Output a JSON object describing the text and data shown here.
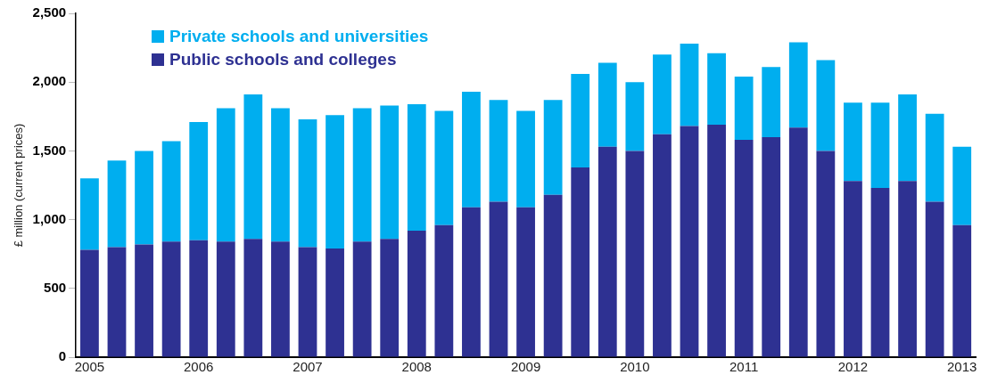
{
  "chart_data": {
    "type": "bar",
    "stacked": true,
    "ylabel": "£ million (current prices)",
    "categories": [
      "2005",
      null,
      null,
      null,
      "2006",
      null,
      null,
      null,
      "2007",
      null,
      null,
      null,
      "2008",
      null,
      null,
      null,
      "2009",
      null,
      null,
      null,
      "2010",
      null,
      null,
      null,
      "2011",
      null,
      null,
      null,
      "2012",
      null,
      null,
      null,
      "2013"
    ],
    "series": [
      {
        "name": "Public schools and colleges",
        "color": "#2e3192",
        "values": [
          780,
          800,
          820,
          840,
          850,
          840,
          860,
          840,
          800,
          790,
          840,
          860,
          920,
          960,
          1090,
          1130,
          1090,
          1180,
          1380,
          1530,
          1500,
          1620,
          1680,
          1690,
          1580,
          1600,
          1670,
          1500,
          1280,
          1230,
          1280,
          1130,
          960
        ]
      },
      {
        "name": "Private schools and universities",
        "color": "#00aeef",
        "values": [
          520,
          630,
          680,
          730,
          860,
          970,
          1050,
          970,
          930,
          970,
          970,
          970,
          920,
          830,
          840,
          740,
          700,
          690,
          680,
          610,
          500,
          580,
          600,
          520,
          460,
          510,
          620,
          660,
          570,
          620,
          630,
          640,
          570
        ]
      }
    ],
    "ylim": [
      0,
      2500
    ],
    "yticks": [
      {
        "value": 0,
        "label": "0"
      },
      {
        "value": 500,
        "label": "500"
      },
      {
        "value": 1000,
        "label": "1,000"
      },
      {
        "value": 1500,
        "label": "1,500"
      },
      {
        "value": 2000,
        "label": "2,000"
      },
      {
        "value": 2500,
        "label": "2,500"
      }
    ],
    "grid": false,
    "legend": "top left"
  }
}
